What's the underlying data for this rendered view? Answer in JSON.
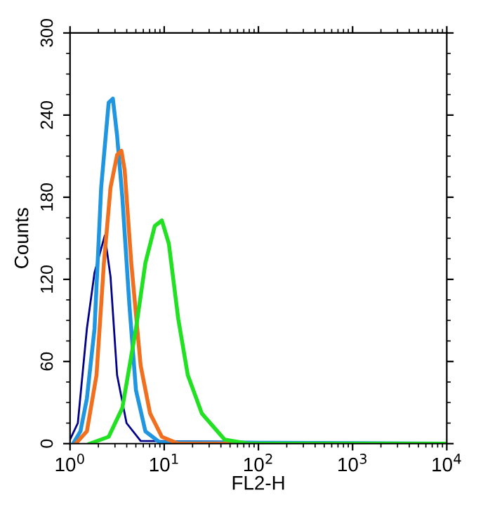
{
  "chart_data": {
    "type": "line",
    "xlabel": "FL2-H",
    "ylabel": "Counts",
    "log": "x",
    "xlim": [
      1,
      10000
    ],
    "xticks": [
      {
        "value": 1,
        "label": "10$^{0}$"
      },
      {
        "value": 10,
        "label": "10$^{1}$"
      },
      {
        "value": 100,
        "label": "10$^{2}$"
      },
      {
        "value": 1000,
        "label": "10$^{3}$"
      },
      {
        "value": 10000,
        "label": "10$^{4}$"
      }
    ],
    "ylim": [
      0,
      300
    ],
    "yticks": [
      0,
      60,
      120,
      180,
      240,
      300
    ],
    "grid": false,
    "legend": false,
    "marker": "none",
    "line_style": "solid",
    "series": [
      {
        "color": "#00008b",
        "x": [
          1.0,
          1.21,
          1.51,
          1.82,
          2.34,
          2.69,
          3.16,
          3.98,
          5.62,
          10000
        ],
        "values": [
          3,
          15,
          84,
          125,
          152,
          122,
          50,
          15,
          2,
          0
        ]
      },
      {
        "color": "#2196e0",
        "x": [
          1.08,
          1.29,
          1.51,
          1.82,
          2.14,
          2.57,
          2.85,
          3.16,
          3.59,
          4.27,
          5.01,
          6.31,
          8.91,
          10000
        ],
        "values": [
          0,
          9,
          33,
          84,
          187,
          249,
          252,
          225,
          180,
          101,
          39,
          9,
          1,
          0
        ]
      },
      {
        "color": "#f07020",
        "x": [
          1.15,
          1.51,
          1.91,
          2.29,
          2.69,
          3.16,
          3.51,
          3.8,
          4.47,
          5.62,
          7.08,
          9.44,
          14.1,
          10000
        ],
        "values": [
          0,
          9,
          50,
          132,
          187,
          211,
          214,
          200,
          132,
          57,
          22,
          5,
          0,
          0
        ]
      },
      {
        "color": "#22e022",
        "x": [
          1.62,
          2.57,
          3.59,
          5.01,
          6.31,
          7.94,
          9.44,
          11.2,
          14.1,
          17.8,
          25.1,
          43.7,
          77.6,
          10000
        ],
        "values": [
          0,
          5,
          26,
          84,
          132,
          159,
          163,
          146,
          91,
          50,
          22,
          3,
          0,
          0
        ]
      }
    ]
  }
}
